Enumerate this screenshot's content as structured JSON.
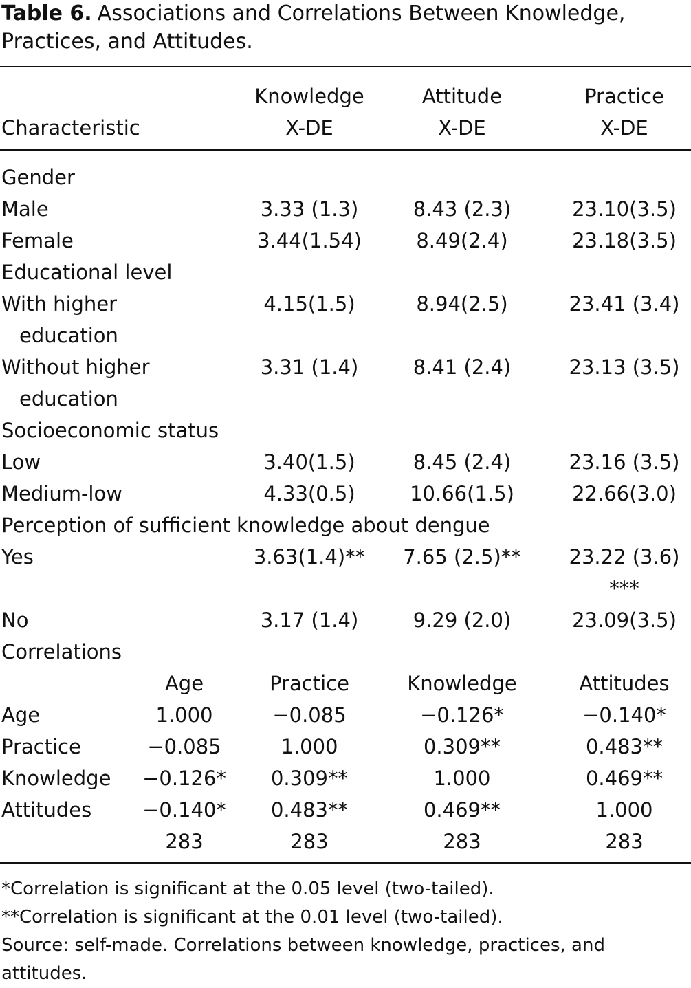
{
  "title": {
    "label": "Table 6.",
    "text": "Associations and Correlations Between Knowledge, Practices, and Attitudes."
  },
  "table": {
    "header": [
      "Characteristic",
      "Knowledge\nX-DE",
      "Attitude\nX-DE",
      "Practice\nX-DE"
    ],
    "rows": [
      [
        "Gender"
      ],
      [
        "Male",
        "3.33 (1.3)",
        "8.43 (2.3)",
        "23.10(3.5)"
      ],
      [
        "Female",
        "3.44(1.54)",
        "8.49(2.4)",
        "23.18(3.5)"
      ],
      [
        "Educational level"
      ],
      [
        "With higher\neducation",
        "4.15(1.5)",
        "8.94(2.5)",
        "23.41 (3.4)"
      ],
      [
        "Without higher\neducation",
        "3.31 (1.4)",
        "8.41 (2.4)",
        "23.13 (3.5)"
      ],
      [
        "Socioeconomic status"
      ],
      [
        "Low",
        "3.40(1.5)",
        "8.45 (2.4)",
        "23.16 (3.5)"
      ],
      [
        "Medium-low",
        "4.33(0.5)",
        "10.66(1.5)",
        "22.66(3.0)"
      ],
      [
        "Perception of sufficient knowledge about dengue"
      ],
      [
        "Yes",
        "3.63(1.4)**",
        "7.65 (2.5)**",
        "23.22 (3.6)\n***"
      ],
      [
        "No",
        "3.17 (1.4)",
        "9.29 (2.0)",
        "23.09(3.5)"
      ]
    ]
  },
  "correlations": {
    "title": "Correlations",
    "header": [
      "Age",
      "Practice",
      "Knowledge",
      "Attitudes"
    ],
    "rows": [
      [
        "Age",
        "1.000",
        "−0.085",
        "−0.126*",
        "−0.140*"
      ],
      [
        "Practice",
        "−0.085",
        "1.000",
        "0.309**",
        "0.483**"
      ],
      [
        "Knowledge",
        "−0.126*",
        "0.309**",
        "1.000",
        "0.469**"
      ],
      [
        "Attitudes",
        "−0.140*",
        "0.483**",
        "0.469**",
        "1.000"
      ]
    ],
    "n": [
      "283",
      "283",
      "283",
      "283"
    ]
  },
  "footnotes": [
    "*Correlation is significant at the 0.05 level (two-tailed).",
    "**Correlation is significant at the 0.01 level (two-tailed).",
    "Source: self-made. Correlations between knowledge, practices, and attitudes."
  ]
}
